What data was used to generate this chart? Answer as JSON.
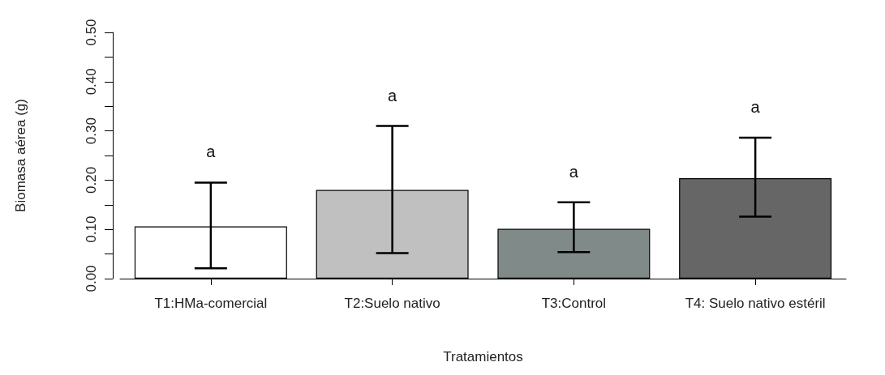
{
  "chart_data": {
    "type": "bar",
    "xlabel": "Tratamientos",
    "ylabel": "Biomasa aérea (g)",
    "categories": [
      "T1:HMa-comercial",
      "T2:Suelo nativo",
      "T3:Control",
      "T4: Suelo nativo estéril"
    ],
    "values": [
      0.106,
      0.18,
      0.101,
      0.204
    ],
    "colors": [
      "#ffffff",
      "#c0c0c0",
      "#808a88",
      "#666666"
    ],
    "errors": [
      [
        0.021,
        0.195
      ],
      [
        0.052,
        0.31
      ],
      [
        0.054,
        0.155
      ],
      [
        0.126,
        0.286
      ]
    ],
    "ylim": [
      0,
      0.5
    ],
    "yticks": [
      {
        "value": 0,
        "label": "0.00"
      },
      {
        "value": 0.05,
        "label": null
      },
      {
        "value": 0.1,
        "label": "0.10"
      },
      {
        "value": 0.15,
        "label": null
      },
      {
        "value": 0.2,
        "label": "0.20"
      },
      {
        "value": 0.25,
        "label": null
      },
      {
        "value": 0.3,
        "label": "0.30"
      },
      {
        "value": 0.35,
        "label": null
      },
      {
        "value": 0.4,
        "label": "0.40"
      },
      {
        "value": 0.45,
        "label": null
      },
      {
        "value": 0.5,
        "label": "0.50"
      }
    ],
    "annotations": [
      "a",
      "a",
      "a",
      "a"
    ]
  }
}
